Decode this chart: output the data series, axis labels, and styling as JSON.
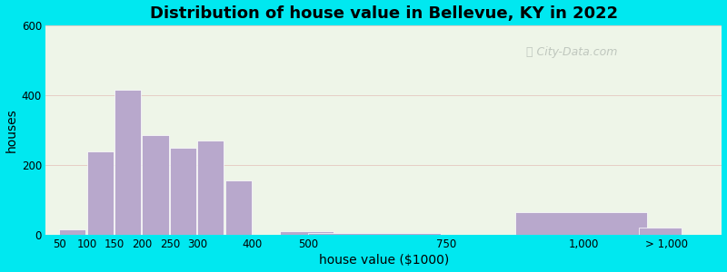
{
  "title": "Distribution of house value in Bellevue, KY in 2022",
  "xlabel": "house value ($1000)",
  "ylabel": "houses",
  "bar_color": "#b8a8cc",
  "background_outer": "#00e8f0",
  "background_inner": "#eef5e8",
  "ylim": [
    0,
    600
  ],
  "yticks": [
    0,
    200,
    400,
    600
  ],
  "xtick_labels": [
    "50",
    "100",
    "150",
    "200",
    "250",
    "300",
    "400",
    "500",
    "750",
    "1,000",
    "> 1,000"
  ],
  "bar_left_edges": [
    50,
    100,
    150,
    200,
    250,
    300,
    350,
    450,
    500,
    875,
    1100
  ],
  "bar_widths": [
    50,
    50,
    50,
    50,
    50,
    50,
    50,
    100,
    250,
    250,
    80
  ],
  "bar_heights": [
    15,
    240,
    415,
    285,
    250,
    270,
    155,
    10,
    5,
    65,
    20
  ],
  "tick_positions": [
    50,
    100,
    150,
    200,
    250,
    300,
    400,
    500,
    750,
    1000,
    1150
  ],
  "xlim": [
    25,
    1250
  ],
  "watermark": "City-Data.com",
  "title_fontsize": 13,
  "axis_fontsize": 10,
  "tick_fontsize": 8.5
}
